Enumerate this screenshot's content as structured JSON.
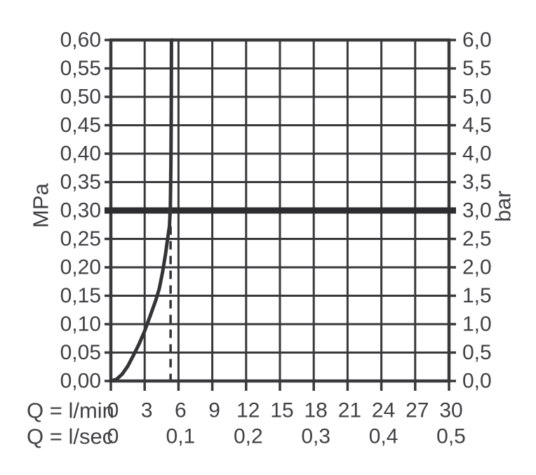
{
  "colors": {
    "background": "#ffffff",
    "grid_line": "#39393b",
    "axis_text": "#414144",
    "curve": "#343437",
    "reference_line": "#2d2d30",
    "marker_dash": "#343437"
  },
  "chart_data": {
    "type": "line",
    "grid": true,
    "legend": false,
    "x_axis": {
      "label": "Q = l/min",
      "range": [
        0,
        30
      ],
      "ticks": [
        {
          "value": 0,
          "label": "0"
        },
        {
          "value": 3,
          "label": "3"
        },
        {
          "value": 6,
          "label": "6"
        },
        {
          "value": 9,
          "label": "9"
        },
        {
          "value": 12,
          "label": "12"
        },
        {
          "value": 15,
          "label": "15"
        },
        {
          "value": 18,
          "label": "18"
        },
        {
          "value": 21,
          "label": "21"
        },
        {
          "value": 24,
          "label": "24"
        },
        {
          "value": 27,
          "label": "27"
        },
        {
          "value": 30,
          "label": "30"
        }
      ]
    },
    "x_axis_secondary": {
      "label": "Q = l/sec",
      "range": [
        0,
        0.5
      ],
      "ticks": [
        {
          "value": 0,
          "label": "0"
        },
        {
          "value": 0.1,
          "label": "0,1"
        },
        {
          "value": 0.2,
          "label": "0,2"
        },
        {
          "value": 0.3,
          "label": "0,3"
        },
        {
          "value": 0.4,
          "label": "0,4"
        },
        {
          "value": 0.5,
          "label": "0,5"
        }
      ]
    },
    "y_axis_left": {
      "label": "MPa",
      "range": [
        0,
        0.6
      ],
      "ticks": [
        {
          "value": 0.6,
          "label": "0,60"
        },
        {
          "value": 0.55,
          "label": "0,55"
        },
        {
          "value": 0.5,
          "label": "0,50"
        },
        {
          "value": 0.45,
          "label": "0,45"
        },
        {
          "value": 0.4,
          "label": "0,40"
        },
        {
          "value": 0.35,
          "label": "0,35"
        },
        {
          "value": 0.3,
          "label": "0,30"
        },
        {
          "value": 0.25,
          "label": "0,25"
        },
        {
          "value": 0.2,
          "label": "0,20"
        },
        {
          "value": 0.15,
          "label": "0,15"
        },
        {
          "value": 0.1,
          "label": "0,10"
        },
        {
          "value": 0.05,
          "label": "0,05"
        },
        {
          "value": 0.0,
          "label": "0,00"
        }
      ]
    },
    "y_axis_right": {
      "label": "bar",
      "range": [
        0,
        6
      ],
      "ticks": [
        {
          "value": 6.0,
          "label": "6,0"
        },
        {
          "value": 5.5,
          "label": "5,5"
        },
        {
          "value": 5.0,
          "label": "5,0"
        },
        {
          "value": 4.5,
          "label": "4,5"
        },
        {
          "value": 4.0,
          "label": "4,0"
        },
        {
          "value": 3.5,
          "label": "3,5"
        },
        {
          "value": 3.0,
          "label": "3,0"
        },
        {
          "value": 2.5,
          "label": "2,5"
        },
        {
          "value": 2.0,
          "label": "2,0"
        },
        {
          "value": 1.5,
          "label": "1,5"
        },
        {
          "value": 1.0,
          "label": "1,0"
        },
        {
          "value": 0.5,
          "label": "0,5"
        },
        {
          "value": 0.0,
          "label": "0,0"
        }
      ]
    },
    "series": [
      {
        "name": "pressure-flow-curve",
        "points_lmin_mpa": [
          [
            0,
            0
          ],
          [
            0.5,
            0.003
          ],
          [
            1,
            0.012
          ],
          [
            1.5,
            0.026
          ],
          [
            2,
            0.045
          ],
          [
            2.5,
            0.065
          ],
          [
            3,
            0.088
          ],
          [
            3.5,
            0.115
          ],
          [
            4,
            0.143
          ],
          [
            4.3,
            0.163
          ],
          [
            4.6,
            0.193
          ],
          [
            4.85,
            0.223
          ],
          [
            5.05,
            0.252
          ],
          [
            5.2,
            0.272
          ],
          [
            5.28,
            0.305
          ],
          [
            5.33,
            0.38
          ],
          [
            5.36,
            0.47
          ],
          [
            5.38,
            0.6
          ]
        ]
      }
    ],
    "reference_line": {
      "orientation": "horizontal",
      "value_mpa": 0.3,
      "value_bar": 3.0
    },
    "marker_line": {
      "orientation": "vertical",
      "style": "dashed",
      "value_lmin": 5.3,
      "from_mpa": 0,
      "to_mpa": 0.272
    }
  }
}
